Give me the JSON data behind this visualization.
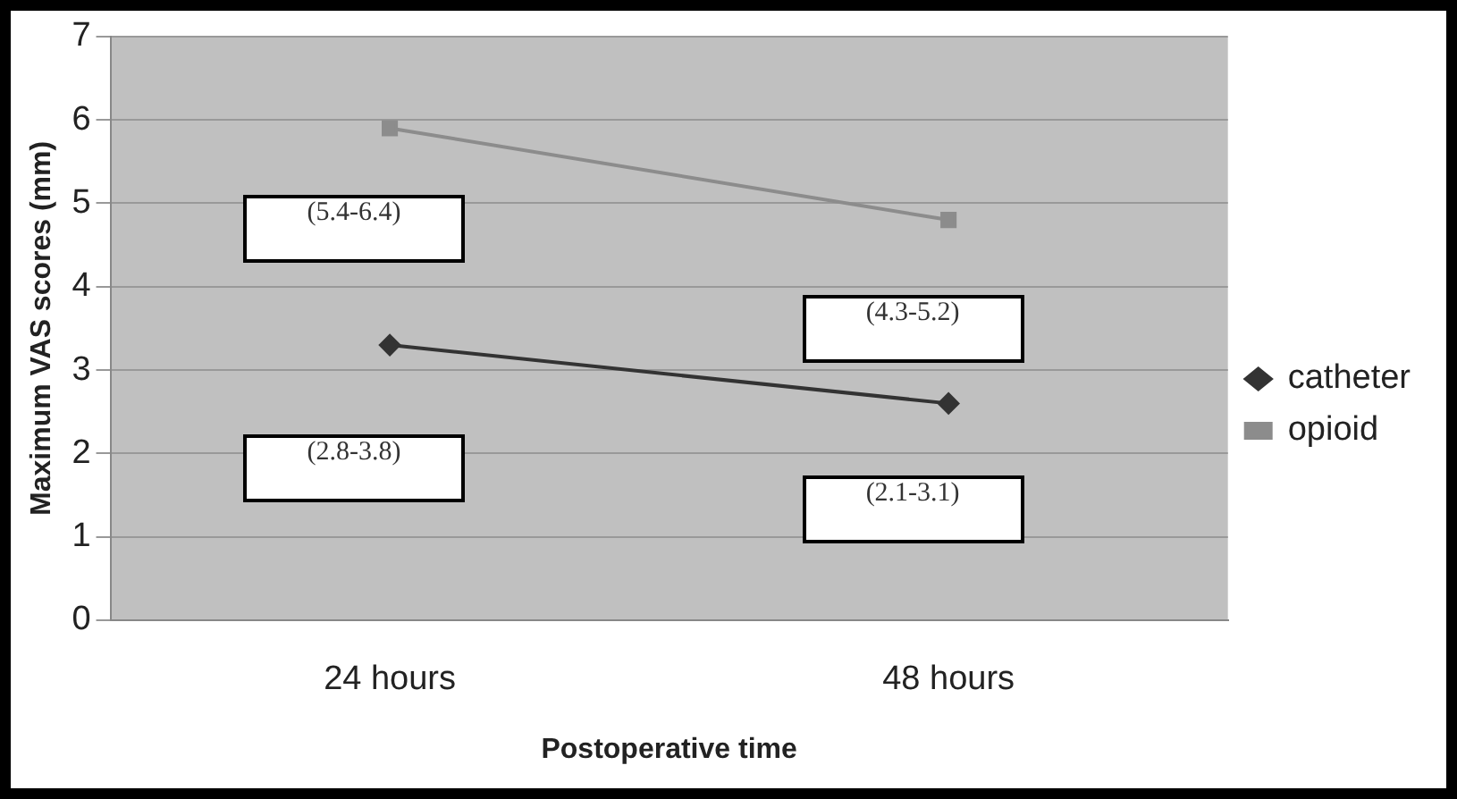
{
  "chart_data": {
    "type": "line",
    "xlabel": "Postoperative time",
    "ylabel": "Maximum VAS scores (mm)",
    "categories": [
      "24 hours",
      "48 hours"
    ],
    "series": [
      {
        "name": "catheter",
        "color": "#333333",
        "values": [
          3.3,
          2.6
        ],
        "marker": "diamond"
      },
      {
        "name": "opioid",
        "color": "#8c8c8c",
        "values": [
          5.9,
          4.8
        ],
        "marker": "square"
      }
    ],
    "ylim": [
      0,
      7
    ],
    "yticks": [
      0,
      1,
      2,
      3,
      4,
      5,
      6,
      7
    ],
    "grid": "y",
    "legend": "right",
    "annotations": [
      "(5.4-6.4)",
      "(2.8-3.8)",
      "(4.3-5.2)",
      "(2.1-3.1)"
    ]
  }
}
